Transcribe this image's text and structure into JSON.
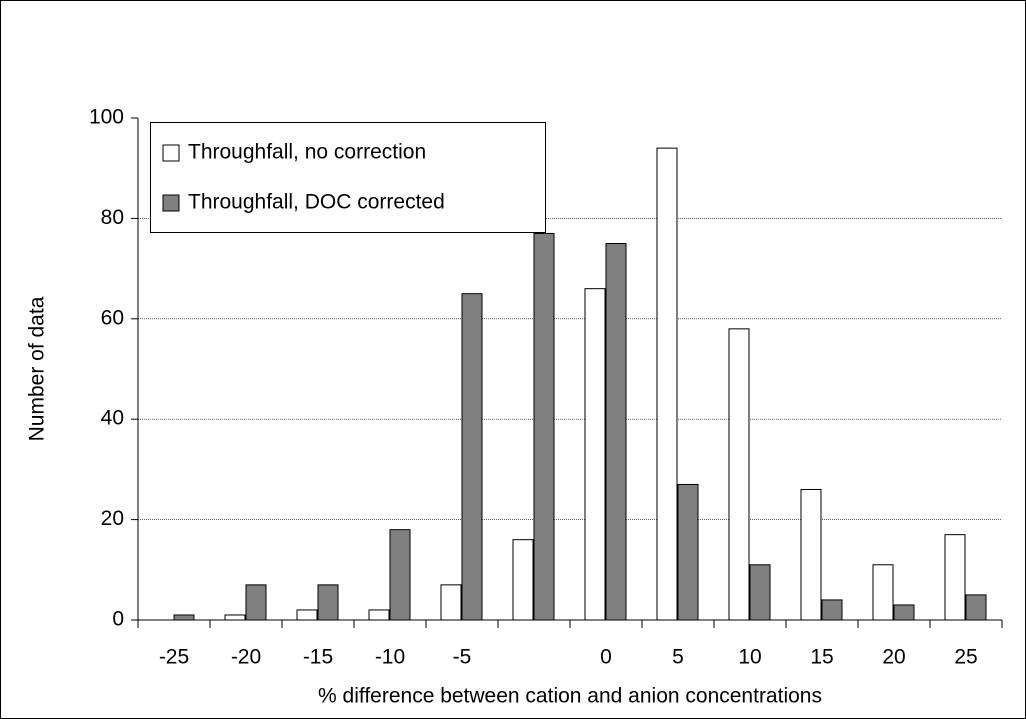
{
  "chart_data": {
    "type": "bar",
    "x_label": "% difference between cation and anion concentrations",
    "y_label": "Number of data",
    "categories": [
      -25,
      -20,
      -15,
      -10,
      -5,
      null,
      0,
      5,
      10,
      15,
      20,
      25
    ],
    "series": [
      {
        "name": "Throughfall, no correction",
        "color": "#ffffff",
        "values": [
          0,
          1,
          2,
          2,
          7,
          16,
          66,
          94,
          58,
          26,
          11,
          17
        ]
      },
      {
        "name": "Throughfall, DOC corrected",
        "color": "#808080",
        "values": [
          1,
          7,
          7,
          18,
          65,
          77,
          75,
          27,
          11,
          4,
          3,
          5
        ]
      }
    ],
    "ylim": [
      0,
      100
    ],
    "yticks": [
      0,
      20,
      40,
      60,
      80,
      100
    ],
    "grid": true,
    "legend": "upper left"
  }
}
